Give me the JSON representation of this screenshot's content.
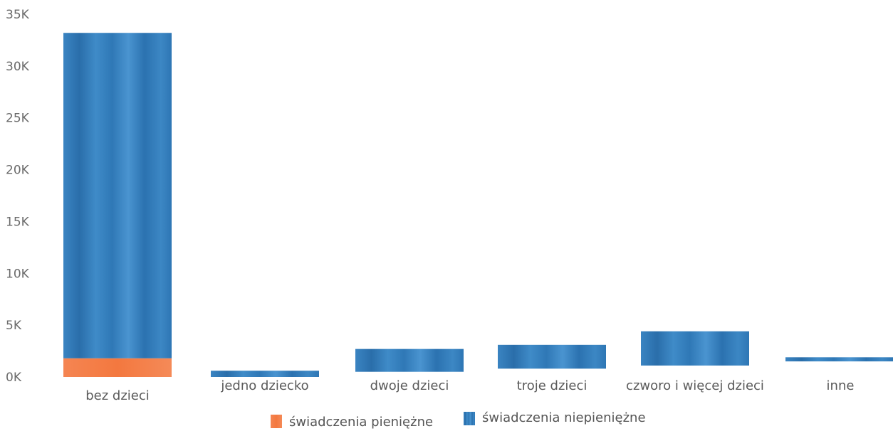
{
  "chart_data": {
    "type": "bar",
    "stacked": true,
    "categories": [
      "bez dzieci",
      "jedno dziecko",
      "dwoje dzieci",
      "troje dzieci",
      "czworo i więcej dzieci",
      "inne"
    ],
    "series": [
      {
        "name": "świadczenia pieniężne",
        "color": "#f47c4a",
        "values": [
          1800,
          0,
          0,
          0,
          0,
          0
        ]
      },
      {
        "name": "świadczenia niepieniężne",
        "color": "#2f7fbe",
        "values": [
          31400,
          600,
          2200,
          2300,
          3300,
          400
        ]
      }
    ],
    "floor_offsets": [
      0,
      0,
      500,
      800,
      1100,
      1500
    ],
    "ylim": [
      0,
      35000
    ],
    "yticks": [
      "0K",
      "5K",
      "10K",
      "15K",
      "20K",
      "25K",
      "30K",
      "35K"
    ],
    "ytick_values": [
      0,
      5000,
      10000,
      15000,
      20000,
      25000,
      30000,
      35000
    ],
    "title": "",
    "xlabel": "",
    "ylabel": "",
    "grid": false,
    "legend_position": "bottom-center"
  }
}
